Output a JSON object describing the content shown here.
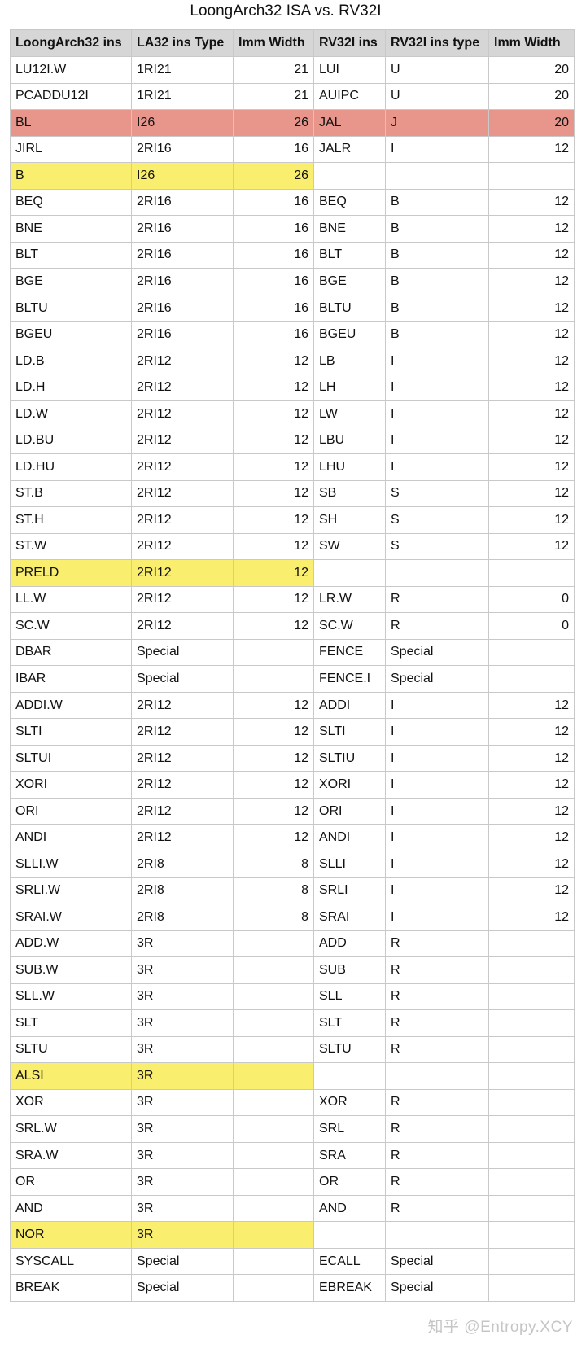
{
  "title": "LoongArch32 ISA vs. RV32I",
  "watermark": "知乎 @Entropy.XCY",
  "colors": {
    "red_highlight": "#e8968c",
    "yellow_highlight": "#f9ee6e",
    "header_bg": "#d6d6d6"
  },
  "table": {
    "headers": [
      "LoongArch32 ins",
      "LA32 ins Type",
      "Imm Width",
      "RV32I ins",
      "RV32I ins type",
      "Imm Width"
    ],
    "rows": [
      {
        "cells": [
          "LU12I.W",
          "1RI21",
          "21",
          "LUI",
          "U",
          "20"
        ],
        "hl": ""
      },
      {
        "cells": [
          "PCADDU12I",
          "1RI21",
          "21",
          "AUIPC",
          "U",
          "20"
        ],
        "hl": ""
      },
      {
        "cells": [
          "BL",
          "I26",
          "26",
          "JAL",
          "J",
          "20"
        ],
        "hl": "red"
      },
      {
        "cells": [
          "JIRL",
          "2RI16",
          "16",
          "JALR",
          "I",
          "12"
        ],
        "hl": ""
      },
      {
        "cells": [
          "B",
          "I26",
          "26",
          "",
          "",
          ""
        ],
        "hl": "yellow"
      },
      {
        "cells": [
          "BEQ",
          "2RI16",
          "16",
          "BEQ",
          "B",
          "12"
        ],
        "hl": ""
      },
      {
        "cells": [
          "BNE",
          "2RI16",
          "16",
          "BNE",
          "B",
          "12"
        ],
        "hl": ""
      },
      {
        "cells": [
          "BLT",
          "2RI16",
          "16",
          "BLT",
          "B",
          "12"
        ],
        "hl": ""
      },
      {
        "cells": [
          "BGE",
          "2RI16",
          "16",
          "BGE",
          "B",
          "12"
        ],
        "hl": ""
      },
      {
        "cells": [
          "BLTU",
          "2RI16",
          "16",
          "BLTU",
          "B",
          "12"
        ],
        "hl": ""
      },
      {
        "cells": [
          "BGEU",
          "2RI16",
          "16",
          "BGEU",
          "B",
          "12"
        ],
        "hl": ""
      },
      {
        "cells": [
          "LD.B",
          "2RI12",
          "12",
          "LB",
          "I",
          "12"
        ],
        "hl": ""
      },
      {
        "cells": [
          "LD.H",
          "2RI12",
          "12",
          "LH",
          "I",
          "12"
        ],
        "hl": ""
      },
      {
        "cells": [
          "LD.W",
          "2RI12",
          "12",
          "LW",
          "I",
          "12"
        ],
        "hl": ""
      },
      {
        "cells": [
          "LD.BU",
          "2RI12",
          "12",
          "LBU",
          "I",
          "12"
        ],
        "hl": ""
      },
      {
        "cells": [
          "LD.HU",
          "2RI12",
          "12",
          "LHU",
          "I",
          "12"
        ],
        "hl": ""
      },
      {
        "cells": [
          "ST.B",
          "2RI12",
          "12",
          "SB",
          "S",
          "12"
        ],
        "hl": ""
      },
      {
        "cells": [
          "ST.H",
          "2RI12",
          "12",
          "SH",
          "S",
          "12"
        ],
        "hl": ""
      },
      {
        "cells": [
          "ST.W",
          "2RI12",
          "12",
          "SW",
          "S",
          "12"
        ],
        "hl": ""
      },
      {
        "cells": [
          "PRELD",
          "2RI12",
          "12",
          "",
          "",
          ""
        ],
        "hl": "yellow"
      },
      {
        "cells": [
          "LL.W",
          "2RI12",
          "12",
          "LR.W",
          "R",
          "0"
        ],
        "hl": ""
      },
      {
        "cells": [
          "SC.W",
          "2RI12",
          "12",
          "SC.W",
          "R",
          "0"
        ],
        "hl": ""
      },
      {
        "cells": [
          "DBAR",
          "Special",
          "",
          "FENCE",
          "Special",
          ""
        ],
        "hl": ""
      },
      {
        "cells": [
          "IBAR",
          "Special",
          "",
          "FENCE.I",
          "Special",
          ""
        ],
        "hl": ""
      },
      {
        "cells": [
          "ADDI.W",
          "2RI12",
          "12",
          "ADDI",
          "I",
          "12"
        ],
        "hl": ""
      },
      {
        "cells": [
          "SLTI",
          "2RI12",
          "12",
          "SLTI",
          "I",
          "12"
        ],
        "hl": ""
      },
      {
        "cells": [
          "SLTUI",
          "2RI12",
          "12",
          "SLTIU",
          "I",
          "12"
        ],
        "hl": ""
      },
      {
        "cells": [
          "XORI",
          "2RI12",
          "12",
          "XORI",
          "I",
          "12"
        ],
        "hl": ""
      },
      {
        "cells": [
          "ORI",
          "2RI12",
          "12",
          "ORI",
          "I",
          "12"
        ],
        "hl": ""
      },
      {
        "cells": [
          "ANDI",
          "2RI12",
          "12",
          "ANDI",
          "I",
          "12"
        ],
        "hl": ""
      },
      {
        "cells": [
          "SLLI.W",
          "2RI8",
          "8",
          "SLLI",
          "I",
          "12"
        ],
        "hl": ""
      },
      {
        "cells": [
          "SRLI.W",
          "2RI8",
          "8",
          "SRLI",
          "I",
          "12"
        ],
        "hl": ""
      },
      {
        "cells": [
          "SRAI.W",
          "2RI8",
          "8",
          "SRAI",
          "I",
          "12"
        ],
        "hl": ""
      },
      {
        "cells": [
          "ADD.W",
          "3R",
          "",
          "ADD",
          "R",
          ""
        ],
        "hl": ""
      },
      {
        "cells": [
          "SUB.W",
          "3R",
          "",
          "SUB",
          "R",
          ""
        ],
        "hl": ""
      },
      {
        "cells": [
          "SLL.W",
          "3R",
          "",
          "SLL",
          "R",
          ""
        ],
        "hl": ""
      },
      {
        "cells": [
          "SLT",
          "3R",
          "",
          "SLT",
          "R",
          ""
        ],
        "hl": ""
      },
      {
        "cells": [
          "SLTU",
          "3R",
          "",
          "SLTU",
          "R",
          ""
        ],
        "hl": ""
      },
      {
        "cells": [
          "ALSI",
          "3R",
          "",
          "",
          "",
          ""
        ],
        "hl": "yellow"
      },
      {
        "cells": [
          "XOR",
          "3R",
          "",
          "XOR",
          "R",
          ""
        ],
        "hl": ""
      },
      {
        "cells": [
          "SRL.W",
          "3R",
          "",
          "SRL",
          "R",
          ""
        ],
        "hl": ""
      },
      {
        "cells": [
          "SRA.W",
          "3R",
          "",
          "SRA",
          "R",
          ""
        ],
        "hl": ""
      },
      {
        "cells": [
          "OR",
          "3R",
          "",
          "OR",
          "R",
          ""
        ],
        "hl": ""
      },
      {
        "cells": [
          "AND",
          "3R",
          "",
          "AND",
          "R",
          ""
        ],
        "hl": ""
      },
      {
        "cells": [
          "NOR",
          "3R",
          "",
          "",
          "",
          ""
        ],
        "hl": "yellow"
      },
      {
        "cells": [
          "SYSCALL",
          "Special",
          "",
          "ECALL",
          "Special",
          ""
        ],
        "hl": ""
      },
      {
        "cells": [
          "BREAK",
          "Special",
          "",
          "EBREAK",
          "Special",
          ""
        ],
        "hl": ""
      }
    ]
  }
}
